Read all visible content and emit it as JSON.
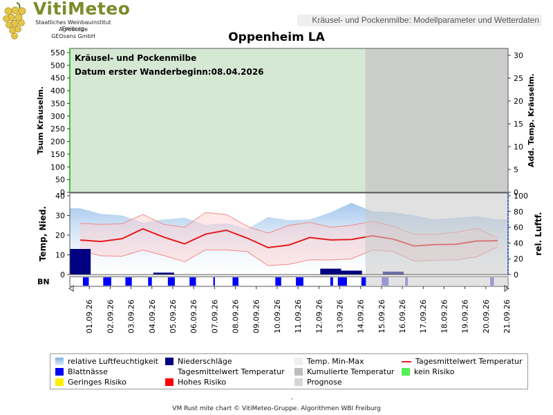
{
  "logo": {
    "title": "VitiMeteo",
    "lines": [
      "Staatliches Weinbauinstitut Freiburg",
      "Agroscope",
      "GEOsens GmbH"
    ]
  },
  "header": {
    "subtitle": "Kräusel- und Pockenmilbe: Modellparameter und Wetterdaten",
    "station": "Oppenheim LA"
  },
  "annotation": {
    "line1": "Kräusel- und Pockenmilbe",
    "line2": "Datum  erster Wanderbeginn:08.04.2026"
  },
  "colors": {
    "kein_risiko": "#7fdc6e",
    "prognose": "#c8c8c8",
    "temp_line": "#e31a1c",
    "humidity": "#9ec4ec",
    "niederschlag": "#000080",
    "blattnaesse": "#0000ff",
    "axis_green": "#33cc33",
    "axis_blue": "#3366cc"
  },
  "chart_data": [
    {
      "type": "area",
      "panel": "Kräusel",
      "ylabel_left": "Tsum Kräuselm.",
      "ylabel_right": "Add. Temp. Kräuselm.",
      "ylim_left": [
        0,
        550
      ],
      "ylim_right": [
        0,
        30
      ],
      "yticks_left": [
        "0",
        "50",
        "100",
        "150",
        "200",
        "250",
        "300",
        "350",
        "400",
        "450",
        "500",
        "550"
      ],
      "yticks_right": [
        "0",
        "5",
        "10",
        "15",
        "20",
        "25",
        "30"
      ],
      "series": []
    },
    {
      "type": "line",
      "panel": "Wetter",
      "ylabel_left": "Temp, Nied.",
      "ylabel_right": "rel. Luftf.",
      "ylim_left": [
        0,
        40
      ],
      "ylim_right": [
        0,
        100
      ],
      "yticks_left": [
        "0",
        "10",
        "20",
        "30",
        "40"
      ],
      "yticks_right": [
        "0",
        "20",
        "40",
        "60",
        "80",
        "100"
      ],
      "categories": [
        "01.09.26",
        "02.09.26",
        "03.09.26",
        "04.09.26",
        "05.09.26",
        "06.09.26",
        "07.09.26",
        "08.09.26",
        "09.09.26",
        "10.09.26",
        "11.09.26",
        "12.09.26",
        "13.09.26",
        "14.09.26",
        "15.09.26",
        "16.09.26",
        "17.09.26",
        "18.09.26",
        "19.09.26",
        "20.09.26",
        "21.09.26"
      ],
      "prognose_from": "15.09.26",
      "temp_mean": [
        17.5,
        16.8,
        18.2,
        23.2,
        19.0,
        15.6,
        20.5,
        22.5,
        18.5,
        13.7,
        15.0,
        18.8,
        17.6,
        17.8,
        19.7,
        18.0,
        14.5,
        15.2,
        15.4,
        17.0,
        17.2
      ],
      "temp_max": [
        26,
        25.5,
        25.8,
        30.5,
        25.5,
        24,
        31.5,
        30.5,
        24.5,
        21,
        25,
        26.5,
        24,
        25,
        27,
        24.5,
        20.5,
        20.5,
        21.5,
        23.5,
        18.5
      ],
      "temp_min": [
        12,
        9.5,
        9.3,
        12.5,
        9.7,
        6.5,
        12.5,
        12.5,
        11.7,
        4.5,
        5.2,
        7.5,
        7.4,
        8,
        12.5,
        11.8,
        6.8,
        7.3,
        7.4,
        9,
        14
      ],
      "humidity": [
        84,
        77,
        75,
        66,
        70,
        72,
        63,
        65,
        58,
        73,
        69,
        70,
        79,
        91,
        80,
        79,
        75,
        70,
        72,
        74,
        70
      ],
      "precip": [
        13,
        0,
        0,
        0,
        1,
        0,
        0,
        0,
        0,
        0,
        0,
        0,
        3,
        2,
        0,
        1.5,
        0,
        0,
        0,
        0,
        0
      ]
    }
  ],
  "bn_label": "BN",
  "blattnaesse_pattern": [
    0.02,
    0.55,
    0.05,
    0.75,
    0.05,
    0.6,
    0.05,
    0.35,
    0.05,
    0.65,
    0.05,
    0.6,
    0.05,
    0.15,
    0.05,
    0.55,
    0.05,
    0.02,
    0.05,
    0.55,
    0.05,
    0.7,
    0.05,
    0.1,
    0.25,
    0.85,
    0.05,
    0.45,
    0.05,
    0.65,
    0.05,
    0.25,
    0.05,
    0.05,
    0.05,
    0.02,
    0.05,
    0.05,
    0.05,
    0.35,
    0.02
  ],
  "legend": [
    {
      "label": "relative Luftfeuchtigkeit",
      "color": "#9ec4ec",
      "kind": "grad"
    },
    {
      "label": "Niederschläge",
      "color": "#000080",
      "kind": "box"
    },
    {
      "label": "Temp. Min-Max",
      "color": "#efefef",
      "kind": "box"
    },
    {
      "label": "Tagesmittelwert Temperatur",
      "color": "#e31a1c",
      "kind": "line"
    },
    {
      "label": "Blattnässe",
      "color": "#0000ff",
      "kind": "box"
    },
    {
      "label": "Tagesmittelwert Temperatur",
      "color": "#ffffff",
      "kind": "box"
    },
    {
      "label": "Kumulierte Temperatur",
      "color": "#bdbdbd",
      "kind": "box"
    },
    {
      "label": "kein Risiko",
      "color": "#55ee55",
      "kind": "box"
    },
    {
      "label": "Geringes Risiko",
      "color": "#ffee00",
      "kind": "box"
    },
    {
      "label": "Hohes Risiko",
      "color": "#ff0000",
      "kind": "box"
    },
    {
      "label": "Prognose",
      "color": "#d6d6d6",
      "kind": "box"
    }
  ],
  "footer": {
    "dash": "-",
    "credit": "VM Rust mite chart © VitiMeteo-Gruppe. Algorithmen WBI Freiburg"
  }
}
